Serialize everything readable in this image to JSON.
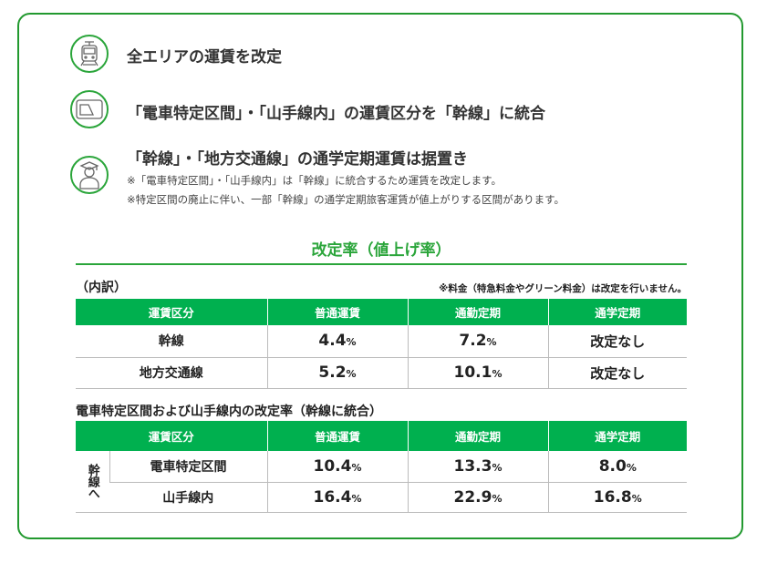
{
  "items": [
    {
      "icon": "train-icon",
      "text": "全エリアの運賃を改定"
    },
    {
      "icon": "ic-card-icon",
      "text": "「電車特定区間」・「山手線内」の運賃区分を「幹線」に統合"
    },
    {
      "icon": "student-icon",
      "text": "「幹線」・「地方交通線」の通学定期運賃は据置き",
      "notes": [
        "※「電車特定区間」・「山手線内」は「幹線」に統合するため運賃を改定します。",
        "※特定区間の廃止に伴い、一部「幹線」の通学定期旅客運賃が値上がりする区間があります。"
      ]
    }
  ],
  "section_title": "改定率（値上げ率）",
  "breakdown_label": "（内訳）",
  "fee_note": "※料金（特急料金やグリーン料金）は改定を行いません。",
  "headers": [
    "運賃区分",
    "普通運賃",
    "通勤定期",
    "通学定期"
  ],
  "table1": [
    {
      "cat": "幹線",
      "regular": "4.4",
      "commuter": "7.2",
      "student": "改定なし"
    },
    {
      "cat": "地方交通線",
      "regular": "5.2",
      "commuter": "10.1",
      "student": "改定なし"
    }
  ],
  "table2_title": "電車特定区間および山手線内の改定率（幹線に統合）",
  "table2_side": "幹線へ",
  "table2": [
    {
      "cat": "電車特定区間",
      "regular": "10.4",
      "commuter": "13.3",
      "student": "8.0"
    },
    {
      "cat": "山手線内",
      "regular": "16.4",
      "commuter": "22.9",
      "student": "16.8"
    }
  ],
  "pct": "%",
  "colors": {
    "green": "#00b04f",
    "frame": "#22992f"
  }
}
